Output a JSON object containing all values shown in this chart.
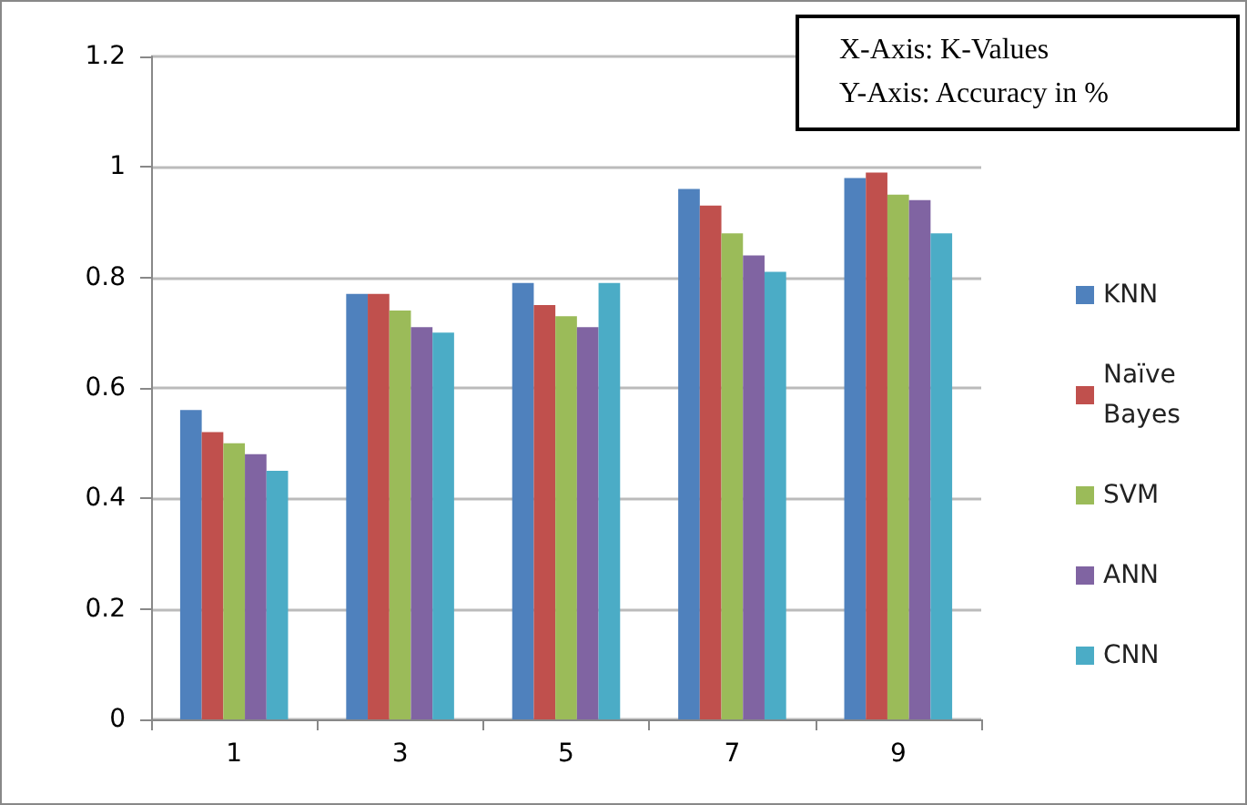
{
  "chart_data": {
    "type": "bar",
    "categories": [
      "1",
      "3",
      "5",
      "7",
      "9"
    ],
    "series": [
      {
        "name": "KNN",
        "color": "#4f81bd",
        "values": [
          0.56,
          0.77,
          0.79,
          0.96,
          0.98
        ]
      },
      {
        "name": "Naïve Bayes",
        "color": "#c0504d",
        "values": [
          0.52,
          0.77,
          0.75,
          0.93,
          0.99
        ]
      },
      {
        "name": "SVM",
        "color": "#9bbb59",
        "values": [
          0.5,
          0.74,
          0.73,
          0.88,
          0.95
        ]
      },
      {
        "name": "ANN",
        "color": "#8064a2",
        "values": [
          0.48,
          0.71,
          0.71,
          0.84,
          0.94
        ]
      },
      {
        "name": "CNN",
        "color": "#4bacc6",
        "values": [
          0.45,
          0.7,
          0.79,
          0.81,
          0.88
        ]
      }
    ],
    "ylim": [
      0,
      1.2
    ],
    "yticks": [
      0,
      0.2,
      0.4,
      0.6,
      0.8,
      1,
      1.2
    ],
    "grid": "y",
    "legend": "right",
    "annotations": [
      "X-Axis: K-Values",
      "Y-Axis: Accuracy in %"
    ]
  }
}
